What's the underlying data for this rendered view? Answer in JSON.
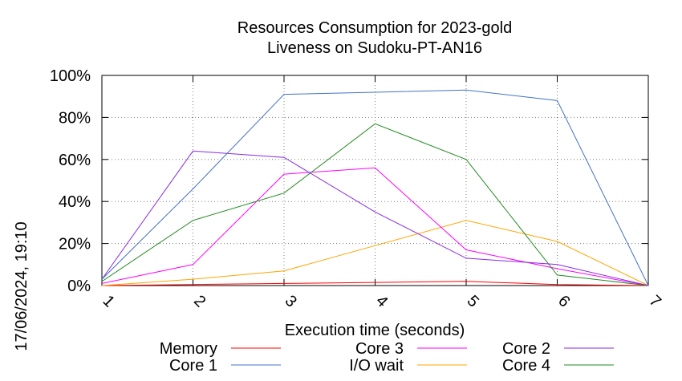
{
  "chart_data": {
    "type": "line",
    "title": [
      "Resources Consumption for 2023-gold",
      "Liveness on Sudoku-PT-AN16"
    ],
    "xlabel": "Execution time (seconds)",
    "ylabel": "",
    "timestamp": "17/06/2024, 19:10",
    "x": [
      1,
      2,
      3,
      4,
      5,
      6,
      7
    ],
    "xlim": [
      1,
      7
    ],
    "ylim": [
      0,
      100
    ],
    "x_ticks": [
      "1",
      "2",
      "3",
      "4",
      "5",
      "6",
      "7"
    ],
    "y_ticks": [
      "0%",
      "20%",
      "40%",
      "60%",
      "80%",
      "100%"
    ],
    "grid": true,
    "legend_position": "bottom",
    "series": [
      {
        "name": "Memory",
        "color": "#ff0000",
        "values": [
          0,
          0.5,
          1,
          1.5,
          2,
          0.5,
          0
        ]
      },
      {
        "name": "Core 1",
        "color": "#4472c4",
        "values": [
          3,
          46,
          91,
          92,
          93,
          88,
          0
        ]
      },
      {
        "name": "Core 3",
        "color": "#ff00ff",
        "values": [
          1,
          10,
          53,
          56,
          17,
          8,
          0
        ]
      },
      {
        "name": "I/O wait",
        "color": "#ffa500",
        "values": [
          0,
          3,
          7,
          19,
          31,
          21,
          0
        ]
      },
      {
        "name": "Core 2",
        "color": "#8a2be2",
        "values": [
          3,
          64,
          61,
          35,
          13,
          10,
          0
        ]
      },
      {
        "name": "Core 4",
        "color": "#228b22",
        "values": [
          2,
          31,
          44,
          77,
          60,
          5,
          0
        ]
      }
    ]
  }
}
